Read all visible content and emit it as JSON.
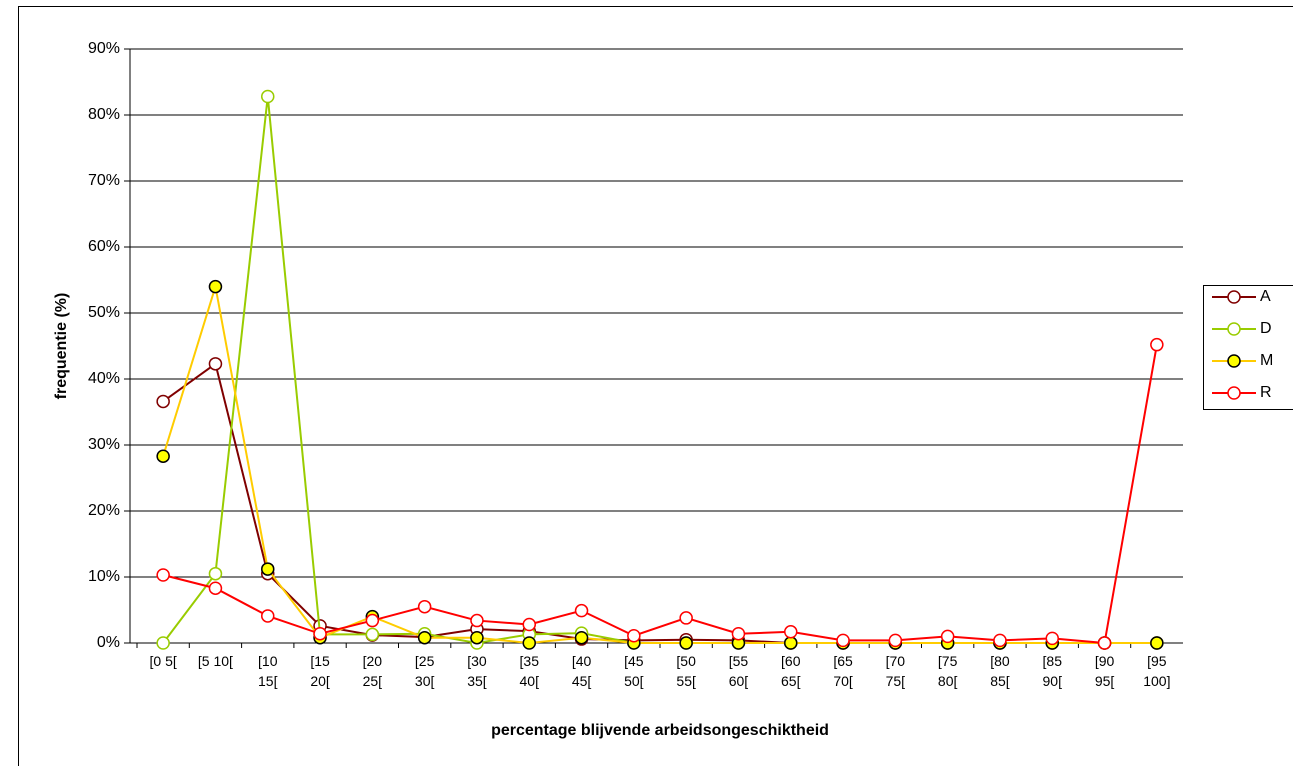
{
  "chart_data": {
    "type": "line",
    "x_label": "percentage blijvende arbeidsongeschiktheid",
    "y_label": "frequentie (%)",
    "categories": [
      "[0 5[",
      "[5 10[",
      "[10 15[",
      "[15 20[",
      "[20 25[",
      "[25 30[",
      "[30 35[",
      "[35 40[",
      "[40 45[",
      "[45 50[",
      "[50 55[",
      "[55 60[",
      "[60 65[",
      "[65 70[",
      "[70 75[",
      "[75 80[",
      "[80 85[",
      "[85 90[",
      "[90 95[",
      "[95 100]"
    ],
    "series": [
      {
        "name": "A",
        "color": "#800000",
        "marker_fill": "#ffffff",
        "marker_edge": "#800000",
        "values": [
          36.6,
          42.3,
          10.5,
          2.6,
          1.2,
          0.9,
          2.1,
          1.8,
          0.6,
          0.4,
          0.5,
          0.4,
          0,
          0,
          0,
          0,
          0,
          0,
          0,
          0
        ]
      },
      {
        "name": "D",
        "color": "#99cc00",
        "marker_fill": "#ffffff",
        "marker_edge": "#99cc00",
        "values": [
          0,
          10.5,
          82.8,
          1.3,
          1.3,
          1.4,
          0,
          1.3,
          1.5,
          0,
          0,
          0,
          0,
          0,
          0,
          0,
          0,
          0,
          0,
          0
        ]
      },
      {
        "name": "M",
        "color": "#ffcc00",
        "marker_fill": "#ffff00",
        "marker_edge": "#000000",
        "values": [
          28.3,
          54,
          11.2,
          0.8,
          4,
          0.8,
          0.8,
          0,
          0.8,
          0,
          0,
          0,
          0,
          0,
          0,
          0,
          0,
          0,
          0,
          0
        ]
      },
      {
        "name": "R",
        "color": "#ff0000",
        "marker_fill": "#ffffff",
        "marker_edge": "#ff0000",
        "values": [
          10.3,
          8.3,
          4.1,
          1.4,
          3.4,
          5.5,
          3.4,
          2.8,
          4.9,
          1.1,
          3.8,
          1.4,
          1.7,
          0.4,
          0.4,
          1,
          0.4,
          0.7,
          0,
          45.2
        ]
      }
    ],
    "ylim": [
      0,
      90
    ],
    "yticks": [
      {
        "value": 0,
        "label": "0%"
      },
      {
        "value": 10,
        "label": "10%"
      },
      {
        "value": 20,
        "label": "20%"
      },
      {
        "value": 30,
        "label": "30%"
      },
      {
        "value": 40,
        "label": "40%"
      },
      {
        "value": 50,
        "label": "50%"
      },
      {
        "value": 60,
        "label": "60%"
      },
      {
        "value": 70,
        "label": "70%"
      },
      {
        "value": 80,
        "label": "80%"
      },
      {
        "value": 90,
        "label": "90%"
      }
    ],
    "grid": true,
    "legend": "right"
  }
}
